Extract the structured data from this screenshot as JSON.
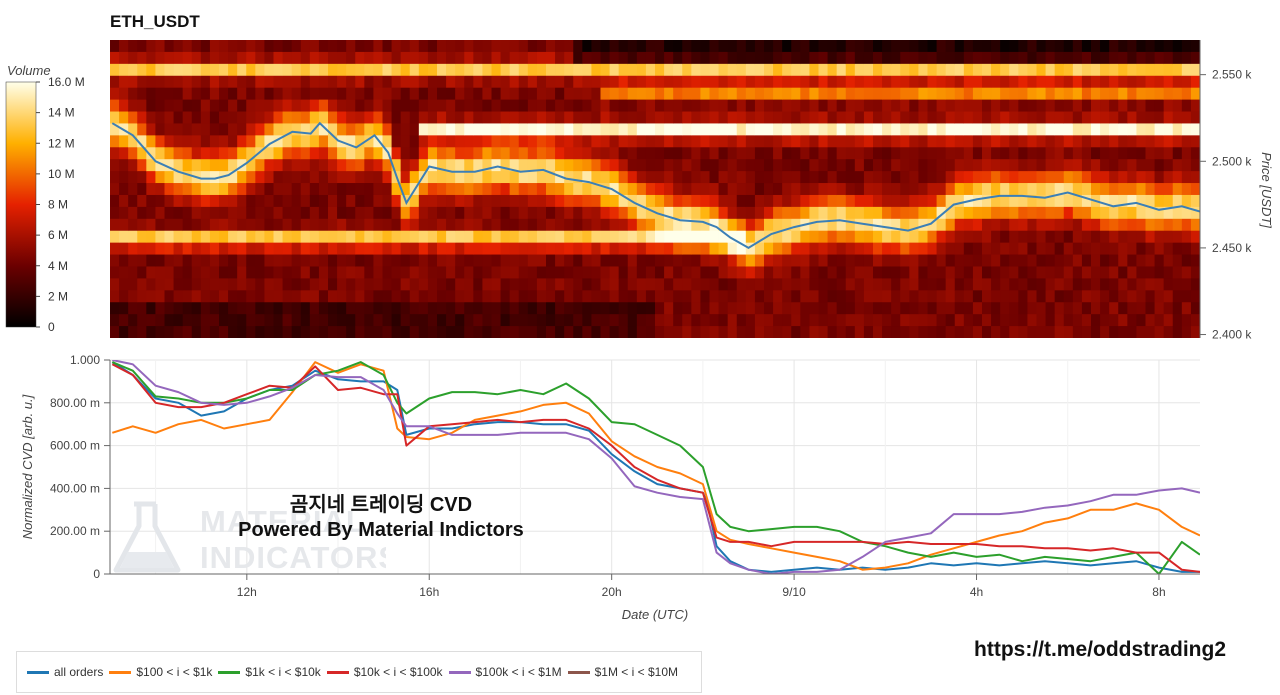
{
  "chart_title": "ETH_USDT",
  "overlay": {
    "title": "곰지네 트레이딩 CVD",
    "subtitle": "Powered By Material Indictors",
    "watermark_line1": "MATERIAL",
    "watermark_line2": "INDICATORS"
  },
  "footer_link": "https://t.me/oddstrading2",
  "colors": {
    "all_orders": "#1f77b4",
    "s100_1k": "#ff7f0e",
    "s1k_10k": "#2ca02c",
    "s10k_100k": "#d62728",
    "s100k_1m": "#9467bd",
    "s1m_10m": "#8c564b"
  },
  "chart_data": [
    {
      "type": "heatmap",
      "title": "ETH_USDT",
      "ylabel": "Price [USDT]",
      "ylim": [
        2398,
        2570
      ],
      "yticks": [
        2400,
        2450,
        2500,
        2550
      ],
      "ytick_labels": [
        "2.400 k",
        "2.450 k",
        "2.500 k",
        "2.550 k"
      ],
      "colorbar": {
        "label": "Volume",
        "range": [
          0,
          16
        ],
        "ticks": [
          0,
          2,
          4,
          6,
          8,
          10,
          12,
          14,
          16
        ],
        "tick_labels": [
          "0",
          "2 M",
          "4 M",
          "6 M",
          "8 M",
          "10 M",
          "12 M",
          "14 M",
          "16.0 M"
        ]
      },
      "price_line": {
        "x": [
          9.05,
          9.5,
          10,
          10.5,
          11,
          11.3,
          11.6,
          12,
          12.5,
          13,
          13.4,
          13.6,
          14,
          14.4,
          14.8,
          15.1,
          15.3,
          15.5,
          16,
          16.5,
          17,
          17.5,
          18,
          18.5,
          19,
          19.5,
          20,
          20.5,
          21,
          21.5,
          22,
          22.3,
          22.6,
          23,
          23.5,
          24,
          24.5,
          25,
          25.5,
          26,
          26.5,
          27,
          27.5,
          28,
          28.5,
          29,
          29.5,
          30,
          30.5,
          31,
          31.5,
          32,
          32.5,
          32.9
        ],
        "y": [
          2522,
          2515,
          2500,
          2494,
          2490,
          2490,
          2492,
          2499,
          2510,
          2517,
          2516,
          2522,
          2512,
          2508,
          2515,
          2505,
          2490,
          2476,
          2497,
          2494,
          2494,
          2497,
          2494,
          2495,
          2490,
          2488,
          2484,
          2476,
          2470,
          2466,
          2465,
          2462,
          2456,
          2450,
          2458,
          2462,
          2465,
          2466,
          2464,
          2462,
          2460,
          2464,
          2475,
          2478,
          2480,
          2480,
          2479,
          2482,
          2478,
          2474,
          2476,
          2472,
          2474,
          2471
        ]
      }
    },
    {
      "type": "line",
      "xlabel": "Date (UTC)",
      "ylabel": "Normalized CVD [arb. u.]",
      "xlim": [
        9.0,
        32.9
      ],
      "ylim": [
        0,
        1
      ],
      "xticks": [
        12,
        16,
        20,
        24,
        28,
        32
      ],
      "xtick_labels": [
        "12h",
        "16h",
        "20h",
        "9/10",
        "4h",
        "8h"
      ],
      "yticks": [
        0,
        0.2,
        0.4,
        0.6,
        0.8,
        1.0
      ],
      "ytick_labels": [
        "0",
        "200.00 m",
        "400.00 m",
        "600.00 m",
        "800.00 m",
        "1.000"
      ],
      "series": [
        {
          "name": "all orders",
          "color": "#1f77b4",
          "x": [
            9.05,
            9.5,
            10,
            10.5,
            11,
            11.5,
            12,
            12.5,
            13,
            13.5,
            14,
            14.5,
            15,
            15.3,
            15.5,
            16,
            16.5,
            17,
            17.5,
            18,
            18.5,
            19,
            19.5,
            20,
            20.5,
            21,
            21.5,
            22,
            22.1,
            22.3,
            22.6,
            23,
            23.5,
            24,
            24.5,
            25,
            25.5,
            26,
            26.5,
            27,
            27.5,
            28,
            28.5,
            29,
            29.5,
            30,
            30.5,
            31,
            31.5,
            32,
            32.5,
            32.9
          ],
          "y": [
            0.99,
            0.93,
            0.82,
            0.8,
            0.74,
            0.76,
            0.82,
            0.86,
            0.88,
            0.95,
            0.91,
            0.9,
            0.9,
            0.86,
            0.65,
            0.68,
            0.68,
            0.7,
            0.71,
            0.71,
            0.7,
            0.7,
            0.67,
            0.56,
            0.48,
            0.42,
            0.4,
            0.38,
            0.33,
            0.13,
            0.06,
            0.02,
            0.01,
            0.02,
            0.03,
            0.02,
            0.03,
            0.02,
            0.03,
            0.05,
            0.04,
            0.05,
            0.04,
            0.05,
            0.06,
            0.05,
            0.04,
            0.05,
            0.06,
            0.03,
            0.01,
            0.01
          ]
        },
        {
          "name": "$100 < i < $1k",
          "color": "#ff7f0e",
          "x": [
            9.05,
            9.5,
            10,
            10.5,
            11,
            11.5,
            12,
            12.5,
            13,
            13.5,
            14,
            14.5,
            15,
            15.3,
            15.5,
            16,
            16.5,
            17,
            17.5,
            18,
            18.5,
            19,
            19.5,
            20,
            20.5,
            21,
            21.5,
            22,
            22.3,
            22.6,
            23,
            23.5,
            24,
            24.5,
            25,
            25.5,
            26,
            26.5,
            27,
            27.5,
            28,
            28.5,
            29,
            29.5,
            30,
            30.5,
            31,
            31.5,
            32,
            32.5,
            32.9
          ],
          "y": [
            0.66,
            0.69,
            0.66,
            0.7,
            0.72,
            0.68,
            0.7,
            0.72,
            0.85,
            0.99,
            0.94,
            0.98,
            0.95,
            0.68,
            0.64,
            0.63,
            0.66,
            0.72,
            0.74,
            0.76,
            0.79,
            0.8,
            0.75,
            0.62,
            0.55,
            0.5,
            0.47,
            0.42,
            0.2,
            0.16,
            0.14,
            0.12,
            0.1,
            0.08,
            0.06,
            0.02,
            0.03,
            0.05,
            0.09,
            0.12,
            0.15,
            0.18,
            0.2,
            0.24,
            0.26,
            0.3,
            0.3,
            0.33,
            0.3,
            0.22,
            0.18
          ]
        },
        {
          "name": "$1k < i < $10k",
          "color": "#2ca02c",
          "x": [
            9.05,
            9.5,
            10,
            10.5,
            11,
            11.5,
            12,
            12.5,
            13,
            13.5,
            14,
            14.5,
            15,
            15.3,
            15.5,
            16,
            16.5,
            17,
            17.5,
            18,
            18.5,
            19,
            19.5,
            20,
            20.5,
            21,
            21.5,
            22,
            22.3,
            22.6,
            23,
            23.5,
            24,
            24.5,
            25,
            25.5,
            26,
            26.5,
            27,
            27.5,
            28,
            28.5,
            29,
            29.5,
            30,
            30.5,
            31,
            31.5,
            32,
            32.5,
            32.9
          ],
          "y": [
            0.99,
            0.95,
            0.83,
            0.82,
            0.8,
            0.8,
            0.82,
            0.86,
            0.86,
            0.93,
            0.95,
            0.99,
            0.93,
            0.8,
            0.75,
            0.82,
            0.85,
            0.85,
            0.84,
            0.86,
            0.84,
            0.89,
            0.82,
            0.71,
            0.7,
            0.65,
            0.6,
            0.5,
            0.28,
            0.22,
            0.2,
            0.21,
            0.22,
            0.22,
            0.2,
            0.15,
            0.13,
            0.1,
            0.08,
            0.1,
            0.08,
            0.09,
            0.06,
            0.08,
            0.07,
            0.06,
            0.08,
            0.1,
            0.0,
            0.15,
            0.09
          ]
        },
        {
          "name": "$10k < i < $100k",
          "color": "#d62728",
          "x": [
            9.05,
            9.5,
            10,
            10.5,
            11,
            11.5,
            12,
            12.5,
            13,
            13.5,
            14,
            14.5,
            15,
            15.3,
            15.5,
            16,
            16.5,
            17,
            17.5,
            18,
            18.5,
            19,
            19.5,
            20,
            20.5,
            21,
            21.5,
            22,
            22.3,
            22.6,
            23,
            23.5,
            24,
            24.5,
            25,
            25.5,
            26,
            26.5,
            27,
            27.5,
            28,
            28.5,
            29,
            29.5,
            30,
            30.5,
            31,
            31.5,
            32,
            32.5,
            32.9
          ],
          "y": [
            0.98,
            0.93,
            0.8,
            0.78,
            0.78,
            0.8,
            0.84,
            0.88,
            0.87,
            0.97,
            0.86,
            0.87,
            0.84,
            0.84,
            0.6,
            0.69,
            0.7,
            0.71,
            0.72,
            0.71,
            0.72,
            0.72,
            0.68,
            0.6,
            0.5,
            0.44,
            0.4,
            0.38,
            0.17,
            0.15,
            0.15,
            0.13,
            0.15,
            0.15,
            0.15,
            0.15,
            0.14,
            0.15,
            0.14,
            0.14,
            0.14,
            0.13,
            0.13,
            0.12,
            0.12,
            0.11,
            0.12,
            0.1,
            0.1,
            0.02,
            0.01
          ]
        },
        {
          "name": "$100k < i < $1M",
          "color": "#9467bd",
          "x": [
            9.05,
            9.5,
            10,
            10.5,
            11,
            11.5,
            12,
            12.5,
            13,
            13.5,
            14,
            14.5,
            15,
            15.3,
            15.5,
            16,
            16.5,
            17,
            17.5,
            18,
            18.5,
            19,
            19.5,
            20,
            20.5,
            21,
            21.5,
            22,
            22.3,
            22.6,
            23,
            23.5,
            24,
            24.5,
            25,
            25.5,
            26,
            26.5,
            27,
            27.5,
            28,
            28.5,
            29,
            29.5,
            30,
            30.5,
            31,
            31.5,
            32,
            32.5,
            32.9
          ],
          "y": [
            1.0,
            0.98,
            0.88,
            0.85,
            0.8,
            0.79,
            0.8,
            0.83,
            0.87,
            0.93,
            0.92,
            0.92,
            0.86,
            0.75,
            0.69,
            0.69,
            0.65,
            0.65,
            0.65,
            0.66,
            0.66,
            0.66,
            0.63,
            0.54,
            0.41,
            0.38,
            0.36,
            0.35,
            0.1,
            0.05,
            0.02,
            0.0,
            0.01,
            0.01,
            0.02,
            0.08,
            0.15,
            0.17,
            0.19,
            0.28,
            0.28,
            0.28,
            0.29,
            0.31,
            0.32,
            0.34,
            0.37,
            0.37,
            0.39,
            0.4,
            0.38
          ]
        },
        {
          "name": "$1M < i < $10M",
          "color": "#8c564b",
          "x": [],
          "y": []
        }
      ]
    }
  ]
}
